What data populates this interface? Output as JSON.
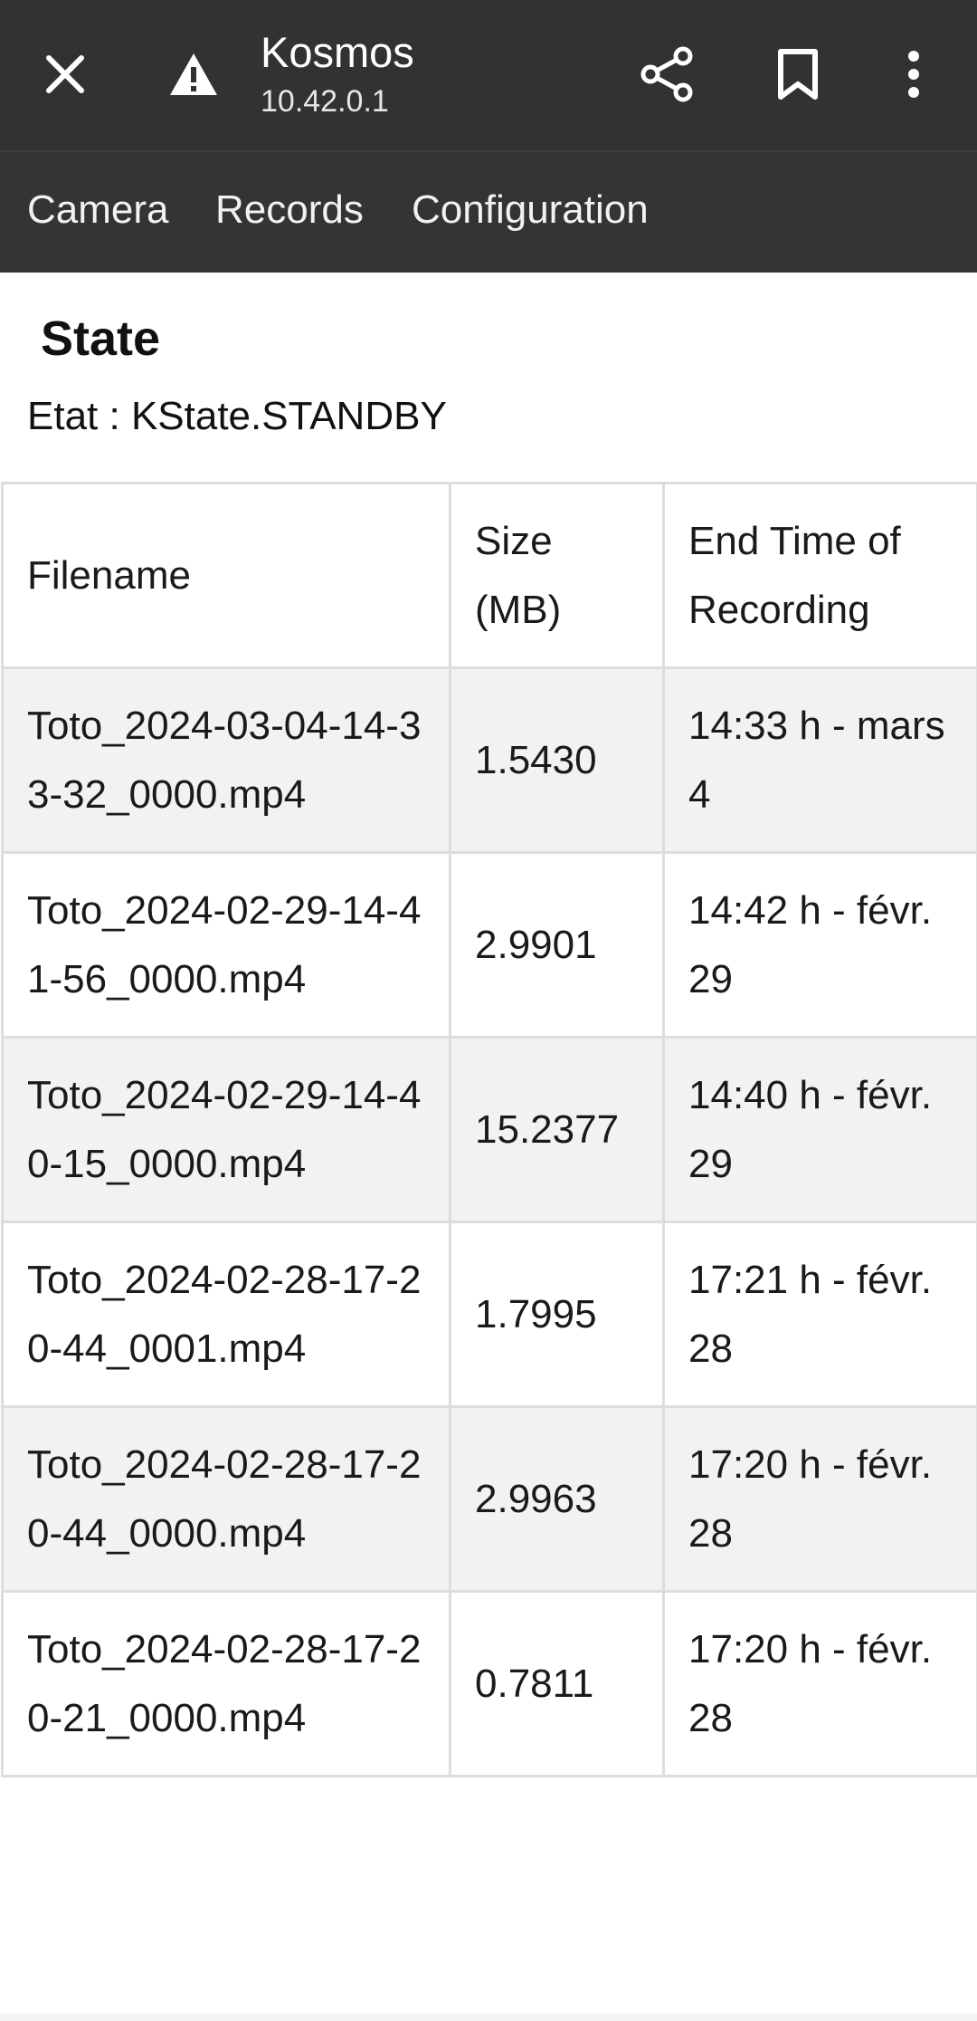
{
  "browser": {
    "site_title": "Kosmos",
    "site_url": "10.42.0.1",
    "icons": {
      "close": "close-icon",
      "security": "warning-icon",
      "share": "share-icon",
      "bookmark": "bookmark-icon",
      "more": "more-vert-icon"
    }
  },
  "nav": {
    "camera": "Camera",
    "records": "Records",
    "configuration": "Configuration"
  },
  "state": {
    "title": "State",
    "line": "Etat : KState.STANDBY"
  },
  "table": {
    "headers": [
      "Filename",
      "Size (MB)",
      "End Time of Recording"
    ],
    "rows": [
      [
        "Toto_2024-03-04-14-33-32_0000.mp4",
        "1.5430",
        "14:33 h - mars 4"
      ],
      [
        "Toto_2024-02-29-14-41-56_0000.mp4",
        "2.9901",
        "14:42 h - févr. 29"
      ],
      [
        "Toto_2024-02-29-14-40-15_0000.mp4",
        "15.2377",
        "14:40 h - févr. 29"
      ],
      [
        "Toto_2024-02-28-17-20-44_0001.mp4",
        "1.7995",
        "17:21 h - févr. 28"
      ],
      [
        "Toto_2024-02-28-17-20-44_0000.mp4",
        "2.9963",
        "17:20 h - févr. 28"
      ],
      [
        "Toto_2024-02-28-17-20-21_0000.mp4",
        "0.7811",
        "17:20 h - févr. 28"
      ]
    ]
  },
  "colors": {
    "toolbar_bg": "#323232",
    "nav_bg": "#343434",
    "row_stripe": "#f2f2f2",
    "border": "#dddddd"
  }
}
